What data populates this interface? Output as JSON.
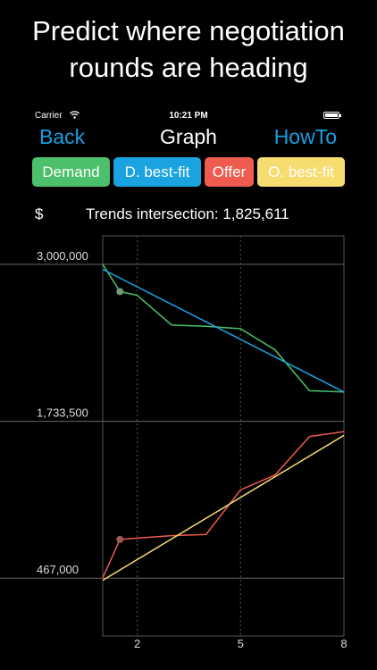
{
  "headline": {
    "line1": "Predict where negotiation",
    "line2": "rounds are heading"
  },
  "status_bar": {
    "carrier": "Carrier",
    "time": "10:21 PM"
  },
  "nav": {
    "back": "Back",
    "title": "Graph",
    "howto": "HowTo"
  },
  "legend": [
    {
      "label": "Demand",
      "color": "#4cc06a"
    },
    {
      "label": "D. best-fit",
      "color": "#1aa3e0"
    },
    {
      "label": "Offer",
      "color": "#ef5b4f"
    },
    {
      "label": "O. best-fit",
      "color": "#f7dc6f"
    }
  ],
  "summary": {
    "currency": "$",
    "trend_text": "Trends intersection: 1,825,611"
  },
  "chart_data": {
    "type": "line",
    "x_ticks": [
      "2",
      "5",
      "8"
    ],
    "y_ticks": [
      "3,000,000",
      "1,733,500",
      "467,000"
    ],
    "xlim": [
      1,
      8
    ],
    "ylim": [
      0,
      3230000
    ],
    "series": [
      {
        "name": "Demand",
        "color": "#4cc06a",
        "x": [
          1,
          1.5,
          2,
          3,
          4,
          5,
          6,
          7,
          8
        ],
        "y": [
          3000000,
          2780000,
          2750000,
          2510000,
          2500000,
          2480000,
          2310000,
          1980000,
          1970000
        ]
      },
      {
        "name": "D. best-fit",
        "color": "#1aa3e0",
        "x": [
          1,
          8
        ],
        "y": [
          2960000,
          1970000
        ]
      },
      {
        "name": "Offer",
        "color": "#ef5b4f",
        "x": [
          1,
          1.5,
          2,
          3,
          4,
          5,
          6,
          7,
          8
        ],
        "y": [
          470000,
          780000,
          790000,
          810000,
          820000,
          1180000,
          1300000,
          1610000,
          1650000
        ]
      },
      {
        "name": "O. best-fit",
        "color": "#f7dc6f",
        "x": [
          1,
          8
        ],
        "y": [
          450000,
          1620000
        ]
      }
    ],
    "markers": [
      {
        "series": "Demand",
        "x": 1.5,
        "y": 2780000,
        "color": "#6f9a74"
      },
      {
        "series": "Offer",
        "x": 1.5,
        "y": 780000,
        "color": "#9a5a56"
      }
    ],
    "grid": true
  }
}
